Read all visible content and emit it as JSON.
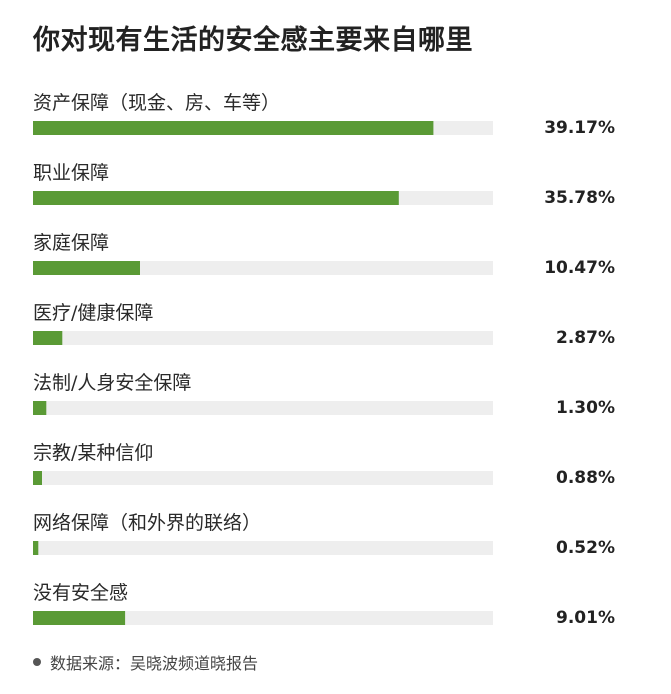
{
  "title": "你对现有生活的安全感主要来自哪里",
  "source": "数据来源：吴晓波频道晓报告",
  "colors": {
    "bar": "#5a9a35",
    "track": "#eeeeee",
    "text": "#222222"
  },
  "chart_data": {
    "type": "bar",
    "orientation": "horizontal",
    "title": "你对现有生活的安全感主要来自哪里",
    "xlim": [
      0,
      45
    ],
    "grid": false,
    "categories": [
      "资产保障（现金、房、车等）",
      "职业保障",
      "家庭保障",
      "医疗/健康保障",
      "法制/人身安全保障",
      "宗教/某种信仰",
      "网络保障（和外界的联络）",
      "没有安全感"
    ],
    "values": [
      39.17,
      35.78,
      10.47,
      2.87,
      1.3,
      0.88,
      0.52,
      9.01
    ],
    "value_labels": [
      "39.17%",
      "35.78%",
      "10.47%",
      "2.87%",
      "1.30%",
      "0.88%",
      "0.52%",
      "9.01%"
    ]
  }
}
